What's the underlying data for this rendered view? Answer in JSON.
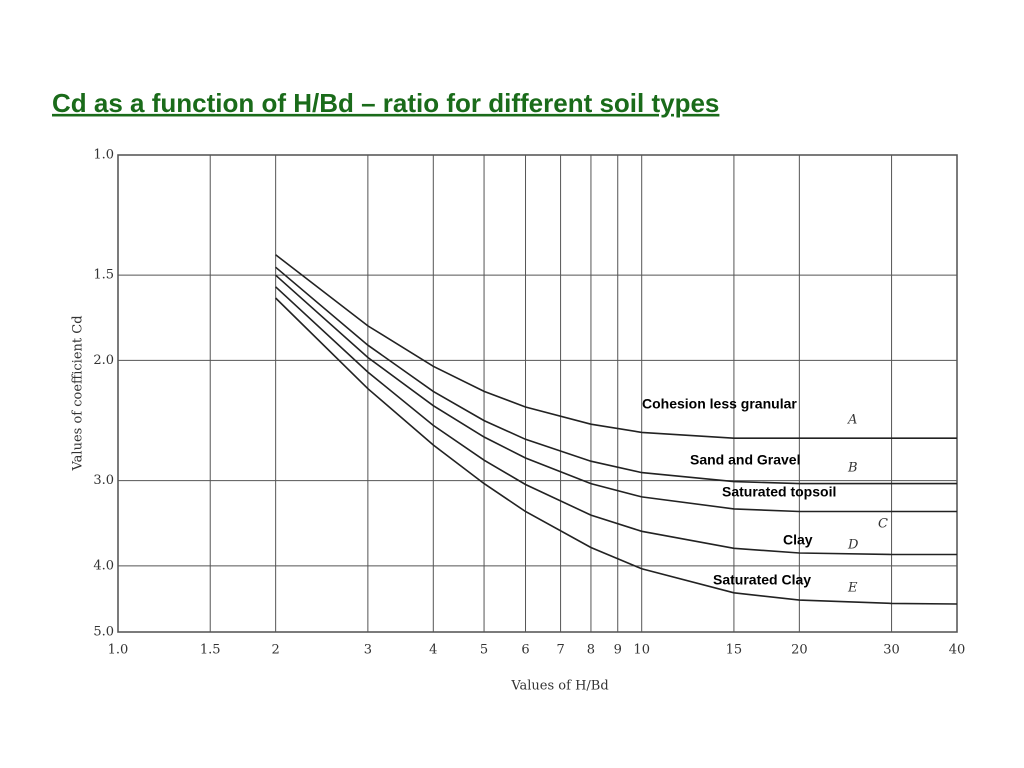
{
  "chart_data": {
    "type": "line",
    "title": "Cd as a function of H/Bd – ratio for different  soil types",
    "x_label": "Values of H/Bd",
    "y_label": "Values of coefficient Cd",
    "x_log": true,
    "y_log": true,
    "y_inverted": true,
    "grid": true,
    "xlim": [
      1,
      40
    ],
    "ylim": [
      1,
      5
    ],
    "xticks": [
      {
        "value": 1,
        "label": "1.0"
      },
      1.5,
      2,
      3,
      4,
      5,
      6,
      7,
      8,
      9,
      10,
      15,
      20,
      30,
      40
    ],
    "yticks": [
      {
        "value": 1,
        "label": "1.0"
      },
      1.5,
      {
        "value": 2,
        "label": "2.0"
      },
      {
        "value": 3,
        "label": "3.0"
      },
      {
        "value": 4,
        "label": "4.0"
      },
      {
        "value": 5,
        "label": "5.0"
      }
    ],
    "x": [
      2,
      3,
      4,
      5,
      6,
      8,
      10,
      15,
      20,
      30,
      40
    ],
    "series": [
      {
        "name": "Cohesion less granular",
        "letter": "A",
        "color": "#222222",
        "values": [
          1.4,
          1.78,
          2.04,
          2.22,
          2.34,
          2.48,
          2.55,
          2.6,
          2.6,
          2.6,
          2.6
        ]
      },
      {
        "name": "Sand and Gravel",
        "letter": "B",
        "color": "#222222",
        "values": [
          1.46,
          1.9,
          2.22,
          2.45,
          2.61,
          2.81,
          2.92,
          3.01,
          3.03,
          3.03,
          3.03
        ]
      },
      {
        "name": "Saturated topsoil",
        "letter": "C",
        "color": "#222222",
        "values": [
          1.5,
          1.98,
          2.33,
          2.59,
          2.78,
          3.03,
          3.17,
          3.3,
          3.33,
          3.33,
          3.33
        ]
      },
      {
        "name": "Clay",
        "letter": "D",
        "color": "#222222",
        "values": [
          1.56,
          2.08,
          2.49,
          2.8,
          3.04,
          3.37,
          3.56,
          3.77,
          3.83,
          3.85,
          3.85
        ]
      },
      {
        "name": "Saturated Clay",
        "letter": "E",
        "color": "#222222",
        "values": [
          1.62,
          2.2,
          2.66,
          3.03,
          3.33,
          3.76,
          4.04,
          4.38,
          4.49,
          4.54,
          4.55
        ]
      }
    ]
  }
}
